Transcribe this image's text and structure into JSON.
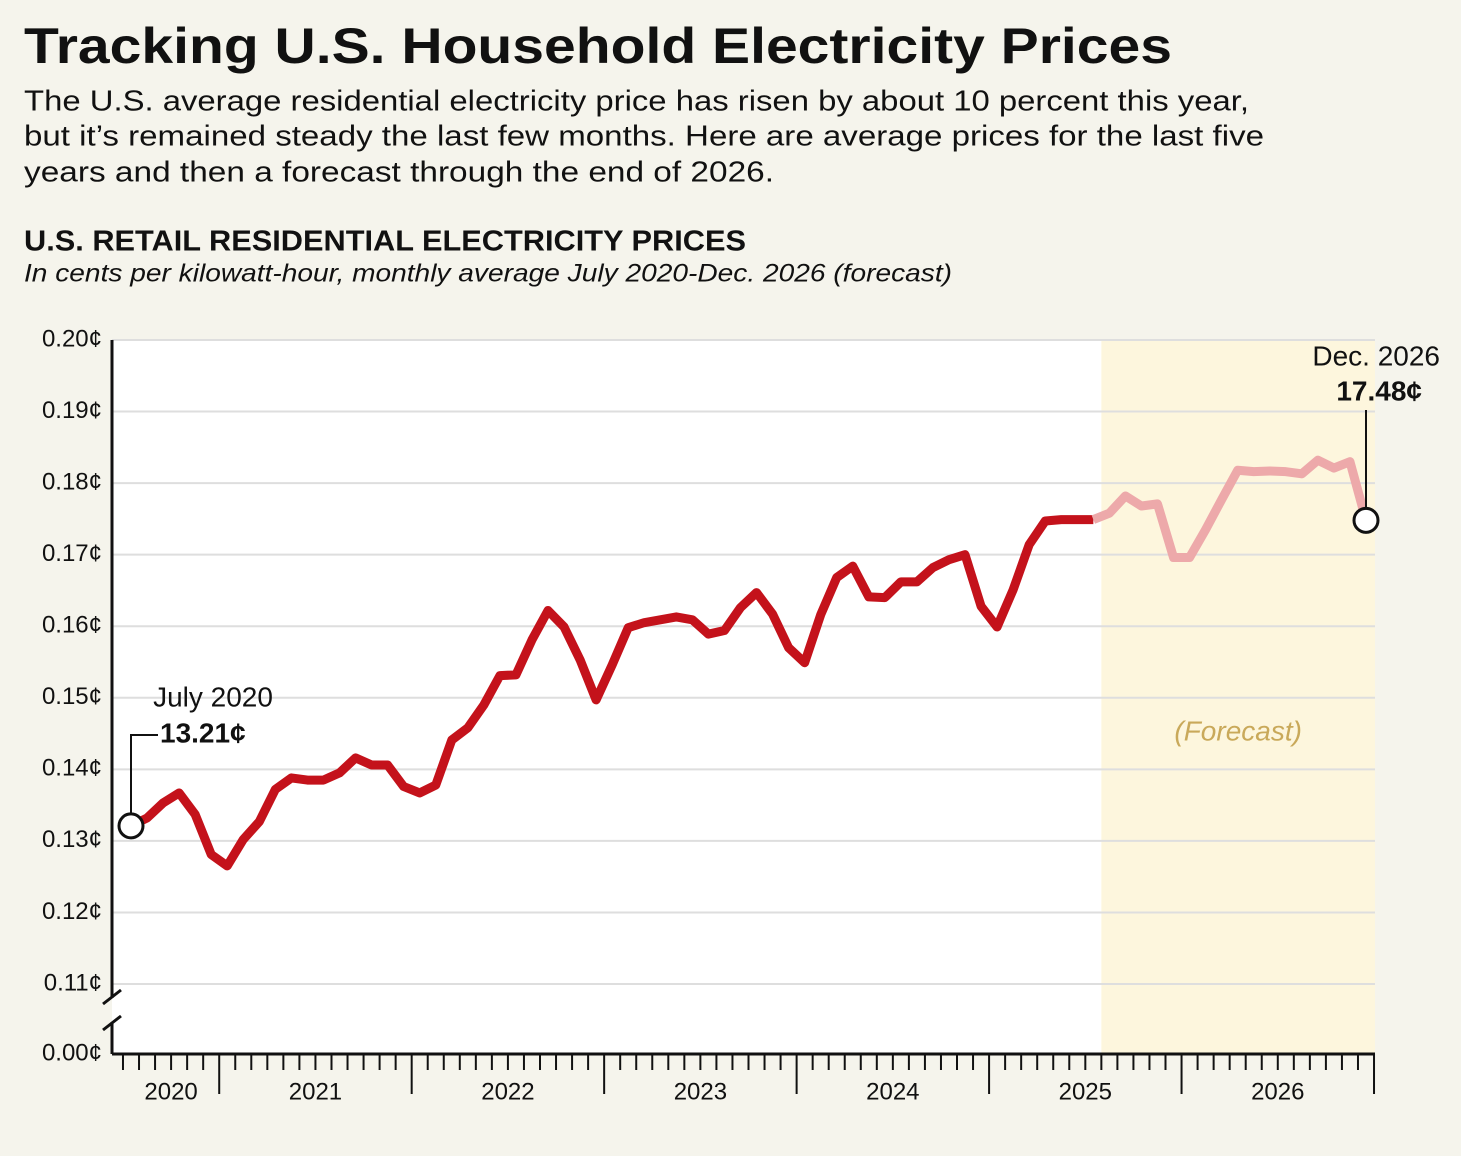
{
  "header": {
    "title": "Tracking U.S. Household Electricity Prices",
    "description": [
      "The U.S. average residential electricity price has risen by about 10 percent this year,",
      "but it’s remained steady the last few months. Here are average prices for the last five",
      "years and then a forecast through the end of 2026."
    ]
  },
  "chart_data": {
    "type": "line",
    "title": "U.S. RETAIL RESIDENTIAL ELECTRICITY PRICES",
    "subtitle": "In cents per kilowatt-hour, monthly average July 2020-Dec. 2026 (forecast)",
    "categories": [
      null,
      null,
      "2020",
      null,
      null,
      null,
      null,
      null,
      null,
      null,
      null,
      "2021",
      null,
      null,
      null,
      null,
      null,
      null,
      null,
      null,
      null,
      null,
      null,
      "2022",
      null,
      null,
      null,
      null,
      null,
      null,
      null,
      null,
      null,
      null,
      null,
      "2023",
      null,
      null,
      null,
      null,
      null,
      null,
      null,
      null,
      null,
      null,
      null,
      "2024",
      null,
      null,
      null,
      null,
      null,
      null,
      null,
      null,
      null,
      null,
      null,
      "2025",
      null,
      null,
      null,
      null,
      null,
      null,
      null,
      null,
      null,
      null,
      null,
      "2026",
      null,
      null,
      null,
      null,
      null,
      null
    ],
    "series": [
      {
        "color": "#c4121b",
        "values": [
          0.1321,
          0.1332,
          0.1353,
          0.1367,
          0.1337,
          0.1281,
          0.1265,
          0.1302,
          0.1327,
          0.1372,
          0.1388,
          0.1385,
          0.1385,
          0.1395,
          0.1416,
          0.1406,
          0.1406,
          0.1376,
          0.1367,
          0.1378,
          0.1441,
          0.1458,
          0.149,
          0.1531,
          0.1532,
          0.1581,
          0.1622,
          0.1599,
          0.1553,
          0.1497,
          0.1546,
          0.1598,
          0.1605,
          0.1609,
          0.1613,
          0.1609,
          0.1589,
          0.1594,
          0.1626,
          0.1647,
          0.1617,
          0.157,
          0.1549,
          0.1616,
          0.1668,
          0.1684,
          0.1641,
          0.164,
          0.1662,
          0.1662,
          0.1682,
          0.1693,
          0.17,
          0.1628,
          0.1599,
          0.1651,
          0.1714,
          0.1747,
          0.1749,
          0.1749,
          0.1749,
          null,
          null,
          null,
          null,
          null,
          null,
          null,
          null,
          null,
          null,
          null,
          null,
          null,
          null,
          null,
          null,
          null
        ],
        "value_labels": [
          "13.21¢",
          null,
          null,
          null,
          null,
          null,
          null,
          null,
          null,
          null,
          null,
          null,
          null,
          null,
          null,
          null,
          null,
          null,
          null,
          null,
          null,
          null,
          null,
          null,
          null,
          null,
          null,
          null,
          null,
          null,
          null,
          null,
          null,
          null,
          null,
          null,
          null,
          null,
          null,
          null,
          null,
          null,
          null,
          null,
          null,
          null,
          null,
          null,
          null,
          null,
          null,
          null,
          null,
          null,
          null,
          null,
          null,
          null,
          null,
          null,
          null,
          null,
          null,
          null,
          null,
          null,
          null,
          null,
          null,
          null,
          null,
          null,
          null,
          null,
          null,
          null,
          null,
          null
        ],
        "point_labels": [
          "July 2020",
          null,
          null,
          null,
          null,
          null,
          null,
          null,
          null,
          null,
          null,
          null,
          null,
          null,
          null,
          null,
          null,
          null,
          null,
          null,
          null,
          null,
          null,
          null,
          null,
          null,
          null,
          null,
          null,
          null,
          null,
          null,
          null,
          null,
          null,
          null,
          null,
          null,
          null,
          null,
          null,
          null,
          null,
          null,
          null,
          null,
          null,
          null,
          null,
          null,
          null,
          null,
          null,
          null,
          null,
          null,
          null,
          null,
          null,
          null,
          null,
          null,
          null,
          null,
          null,
          null,
          null,
          null,
          null,
          null,
          null,
          null,
          null,
          null,
          null,
          null,
          null,
          null
        ]
      },
      {
        "color": "#eda9aa",
        "values": [
          null,
          null,
          null,
          null,
          null,
          null,
          null,
          null,
          null,
          null,
          null,
          null,
          null,
          null,
          null,
          null,
          null,
          null,
          null,
          null,
          null,
          null,
          null,
          null,
          null,
          null,
          null,
          null,
          null,
          null,
          null,
          null,
          null,
          null,
          null,
          null,
          null,
          null,
          null,
          null,
          null,
          null,
          null,
          null,
          null,
          null,
          null,
          null,
          null,
          null,
          null,
          null,
          null,
          null,
          null,
          null,
          null,
          null,
          null,
          null,
          0.1749,
          0.1758,
          0.1782,
          0.1768,
          0.1771,
          0.1696,
          0.1696,
          0.1735,
          0.1777,
          0.1818,
          0.1816,
          0.1817,
          0.1816,
          0.1813,
          0.1832,
          0.1821,
          0.183,
          0.1748
        ],
        "value_labels": [
          null,
          null,
          null,
          null,
          null,
          null,
          null,
          null,
          null,
          null,
          null,
          null,
          null,
          null,
          null,
          null,
          null,
          null,
          null,
          null,
          null,
          null,
          null,
          null,
          null,
          null,
          null,
          null,
          null,
          null,
          null,
          null,
          null,
          null,
          null,
          null,
          null,
          null,
          null,
          null,
          null,
          null,
          null,
          null,
          null,
          null,
          null,
          null,
          null,
          null,
          null,
          null,
          null,
          null,
          null,
          null,
          null,
          null,
          null,
          null,
          null,
          null,
          null,
          null,
          null,
          null,
          null,
          null,
          null,
          null,
          null,
          null,
          null,
          null,
          null,
          null,
          null,
          "17.48¢"
        ],
        "point_labels": [
          null,
          null,
          null,
          null,
          null,
          null,
          null,
          null,
          null,
          null,
          null,
          null,
          null,
          null,
          null,
          null,
          null,
          null,
          null,
          null,
          null,
          null,
          null,
          null,
          null,
          null,
          null,
          null,
          null,
          null,
          null,
          null,
          null,
          null,
          null,
          null,
          null,
          null,
          null,
          null,
          null,
          null,
          null,
          null,
          null,
          null,
          null,
          null,
          null,
          null,
          null,
          null,
          null,
          null,
          null,
          null,
          null,
          null,
          null,
          null,
          null,
          null,
          null,
          null,
          null,
          null,
          null,
          null,
          null,
          null,
          null,
          null,
          null,
          null,
          null,
          null,
          null,
          "Dec. 2026"
        ]
      }
    ],
    "forecast_label": "(Forecast)",
    "forecast_color": "#fdf6dd",
    "ylim": [
      0,
      0.2
    ],
    "y_axis_break": true,
    "yticks": [
      {
        "value": 0,
        "label": "0.00¢"
      },
      {
        "value": 0.11,
        "label": "0.11¢"
      },
      {
        "value": 0.12,
        "label": "0.12¢"
      },
      {
        "value": 0.13,
        "label": "0.13¢"
      },
      {
        "value": 0.14,
        "label": "0.14¢"
      },
      {
        "value": 0.15,
        "label": "0.15¢"
      },
      {
        "value": 0.16,
        "label": "0.16¢"
      },
      {
        "value": 0.17,
        "label": "0.17¢"
      },
      {
        "value": 0.18,
        "label": "0.18¢"
      },
      {
        "value": 0.19,
        "label": "0.19¢"
      },
      {
        "value": 0.2,
        "label": "0.20¢"
      }
    ],
    "grid": true
  }
}
